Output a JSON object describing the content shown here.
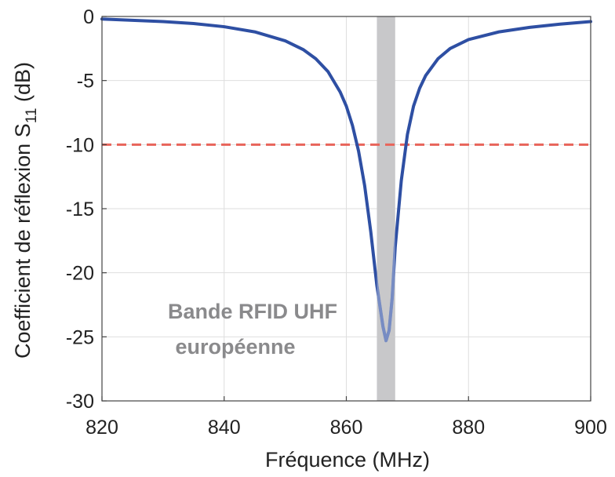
{
  "chart_data": {
    "type": "line",
    "xlabel": "Fréquence (MHz)",
    "ylabel": {
      "text": "Coefficient de réflexion S",
      "subscript": "11",
      "unit": " (dB)"
    },
    "xlim": [
      820,
      900
    ],
    "ylim": [
      -30,
      0
    ],
    "xticks": [
      820,
      840,
      860,
      880,
      900
    ],
    "yticks": [
      0,
      -5,
      -10,
      -15,
      -20,
      -25,
      -30
    ],
    "grid": true,
    "threshold": {
      "y": -10,
      "color": "#e8645a",
      "style": "dashed"
    },
    "band": {
      "x": [
        865,
        868
      ],
      "color": "#c8c8ca",
      "label_lines": [
        "Bande RFID UHF",
        "européenne"
      ],
      "label_color": "#8a8a8c"
    },
    "series": [
      {
        "color": "#2e4fa3",
        "x": [
          820,
          825,
          830,
          835,
          840,
          845,
          850,
          853,
          855,
          857,
          859,
          860,
          861,
          862,
          863,
          864,
          865,
          866,
          866.5,
          867,
          867.5,
          868,
          869,
          870,
          871,
          872,
          873,
          875,
          877,
          880,
          885,
          890,
          895,
          900
        ],
        "y": [
          -0.2,
          -0.3,
          -0.4,
          -0.55,
          -0.8,
          -1.2,
          -1.9,
          -2.6,
          -3.3,
          -4.3,
          -5.9,
          -7.0,
          -8.5,
          -10.5,
          -13.2,
          -16.8,
          -21.0,
          -24.2,
          -25.3,
          -24.5,
          -22.0,
          -18.0,
          -12.8,
          -9.2,
          -7.0,
          -5.6,
          -4.6,
          -3.3,
          -2.5,
          -1.8,
          -1.2,
          -0.85,
          -0.6,
          -0.4
        ]
      }
    ]
  }
}
